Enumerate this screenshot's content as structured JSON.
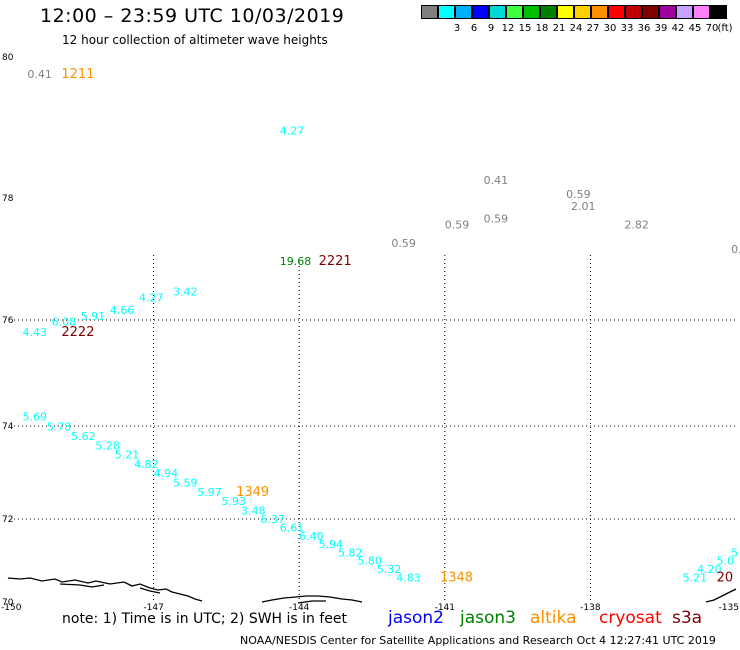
{
  "header": {
    "title": "12:00 – 23:59 UTC 10/03/2019",
    "subtitle": "12 hour collection of altimeter wave heights"
  },
  "legend": {
    "unit": "(ft)",
    "bins": [
      {
        "color": "#808080",
        "label": ""
      },
      {
        "color": "#00ffff",
        "label": "3"
      },
      {
        "color": "#00b0ff",
        "label": "6"
      },
      {
        "color": "#0000ff",
        "label": "9"
      },
      {
        "color": "#00d8d8",
        "label": "12"
      },
      {
        "color": "#40ff40",
        "label": "15"
      },
      {
        "color": "#00c000",
        "label": "18"
      },
      {
        "color": "#008000",
        "label": "21"
      },
      {
        "color": "#ffff00",
        "label": "24"
      },
      {
        "color": "#ffd000",
        "label": "27"
      },
      {
        "color": "#ff9000",
        "label": "30"
      },
      {
        "color": "#ff0000",
        "label": "33"
      },
      {
        "color": "#c00000",
        "label": "36"
      },
      {
        "color": "#800000",
        "label": "39"
      },
      {
        "color": "#a000a0",
        "label": "42"
      },
      {
        "color": "#c8a0ff",
        "label": "45"
      },
      {
        "color": "#ff80ff",
        "label": "70"
      },
      {
        "color": "#000000",
        "label": ""
      }
    ]
  },
  "map": {
    "lon_range": [
      -150,
      -135
    ],
    "lat_range": [
      70,
      80
    ],
    "lon_labels": [
      "-150",
      "-147",
      "-144",
      "-141",
      "-138",
      "-135"
    ],
    "lat_labels": [
      "80",
      "78",
      "76",
      "74",
      "72",
      "70"
    ],
    "observations": [
      {
        "text": "0.41",
        "color": "#808080",
        "lon": -149.6,
        "lat": 79.7
      },
      {
        "text": "1211",
        "color": "#ff9000",
        "lon": -148.9,
        "lat": 79.7,
        "kind": "time"
      },
      {
        "text": "4.27",
        "color": "#00ffff",
        "lon": -144.4,
        "lat": 78.9
      },
      {
        "text": "0.41",
        "color": "#808080",
        "lon": -140.2,
        "lat": 78.2
      },
      {
        "text": "0.59",
        "color": "#808080",
        "lon": -138.5,
        "lat": 78.0
      },
      {
        "text": "2.01",
        "color": "#808080",
        "lon": -138.4,
        "lat": 77.8
      },
      {
        "text": "0.59",
        "color": "#808080",
        "lon": -141.0,
        "lat": 77.5
      },
      {
        "text": "0.59",
        "color": "#808080",
        "lon": -140.2,
        "lat": 77.6
      },
      {
        "text": "2.82",
        "color": "#808080",
        "lon": -137.3,
        "lat": 77.5
      },
      {
        "text": "0.59",
        "color": "#808080",
        "lon": -142.1,
        "lat": 77.2
      },
      {
        "text": "0.",
        "color": "#808080",
        "lon": -135.1,
        "lat": 77.1
      },
      {
        "text": "19.68",
        "color": "#008000",
        "lon": -144.4,
        "lat": 76.9
      },
      {
        "text": "2221",
        "color": "#800000",
        "lon": -143.6,
        "lat": 76.9,
        "kind": "time"
      },
      {
        "text": "3.42",
        "color": "#00ffff",
        "lon": -146.6,
        "lat": 76.4
      },
      {
        "text": "4.27",
        "color": "#00ffff",
        "lon": -147.3,
        "lat": 76.3
      },
      {
        "text": "4.66",
        "color": "#00ffff",
        "lon": -147.9,
        "lat": 76.1
      },
      {
        "text": "5.91",
        "color": "#00ffff",
        "lon": -148.5,
        "lat": 76.0
      },
      {
        "text": "6.08",
        "color": "#00ffff",
        "lon": -149.1,
        "lat": 75.9
      },
      {
        "text": "4.43",
        "color": "#00ffff",
        "lon": -149.7,
        "lat": 75.7
      },
      {
        "text": "2222",
        "color": "#800000",
        "lon": -148.9,
        "lat": 75.7,
        "kind": "time"
      },
      {
        "text": "5.69",
        "color": "#00ffff",
        "lon": -149.7,
        "lat": 74.1
      },
      {
        "text": "5.78",
        "color": "#00ffff",
        "lon": -149.2,
        "lat": 73.9
      },
      {
        "text": "5.62",
        "color": "#00ffff",
        "lon": -148.7,
        "lat": 73.7
      },
      {
        "text": "5.28",
        "color": "#00ffff",
        "lon": -148.2,
        "lat": 73.5
      },
      {
        "text": "5.21",
        "color": "#00ffff",
        "lon": -147.8,
        "lat": 73.3
      },
      {
        "text": "4.82",
        "color": "#00ffff",
        "lon": -147.4,
        "lat": 73.1
      },
      {
        "text": "4.94",
        "color": "#00ffff",
        "lon": -147.0,
        "lat": 72.9
      },
      {
        "text": "5.59",
        "color": "#00ffff",
        "lon": -146.6,
        "lat": 72.7
      },
      {
        "text": "5.97",
        "color": "#00ffff",
        "lon": -146.1,
        "lat": 72.5
      },
      {
        "text": "1349",
        "color": "#ff9000",
        "lon": -145.3,
        "lat": 72.5,
        "kind": "time"
      },
      {
        "text": "5.93",
        "color": "#00ffff",
        "lon": -145.6,
        "lat": 72.3
      },
      {
        "text": "3.48",
        "color": "#00ffff",
        "lon": -145.2,
        "lat": 72.1
      },
      {
        "text": "6.37",
        "color": "#00ffff",
        "lon": -144.8,
        "lat": 71.9
      },
      {
        "text": "6.61",
        "color": "#00ffff",
        "lon": -144.4,
        "lat": 71.7
      },
      {
        "text": "6.40",
        "color": "#00ffff",
        "lon": -144.0,
        "lat": 71.5
      },
      {
        "text": "5.94",
        "color": "#00ffff",
        "lon": -143.6,
        "lat": 71.3
      },
      {
        "text": "5.82",
        "color": "#00ffff",
        "lon": -143.2,
        "lat": 71.1
      },
      {
        "text": "5.80",
        "color": "#00ffff",
        "lon": -142.8,
        "lat": 70.9
      },
      {
        "text": "5.32",
        "color": "#00ffff",
        "lon": -142.4,
        "lat": 70.7
      },
      {
        "text": "4.83",
        "color": "#00ffff",
        "lon": -142.0,
        "lat": 70.5
      },
      {
        "text": "1348",
        "color": "#ff9000",
        "lon": -141.1,
        "lat": 70.5,
        "kind": "time"
      },
      {
        "text": "5.21",
        "color": "#00ffff",
        "lon": -136.1,
        "lat": 70.5
      },
      {
        "text": "4.20",
        "color": "#00ffff",
        "lon": -135.8,
        "lat": 70.7
      },
      {
        "text": "5.0",
        "color": "#00ffff",
        "lon": -135.4,
        "lat": 70.9
      },
      {
        "text": "5",
        "color": "#00ffff",
        "lon": -135.1,
        "lat": 71.1
      },
      {
        "text": "20",
        "color": "#800000",
        "lon": -135.4,
        "lat": 70.5,
        "kind": "time"
      }
    ]
  },
  "footer": {
    "note": "note: 1) Time is in UTC; 2) SWH is in feet",
    "satellites": [
      {
        "name": "jason2",
        "color": "#0000ff"
      },
      {
        "name": "jason3",
        "color": "#008000"
      },
      {
        "name": "altika",
        "color": "#ff9000"
      },
      {
        "name": "cryosat",
        "color": "#ff0000"
      },
      {
        "name": "s3a",
        "color": "#800000"
      }
    ],
    "credit": "NOAA/NESDIS Center for Satellite Applications and Research    Oct  4 12:27:41 UTC 2019"
  }
}
